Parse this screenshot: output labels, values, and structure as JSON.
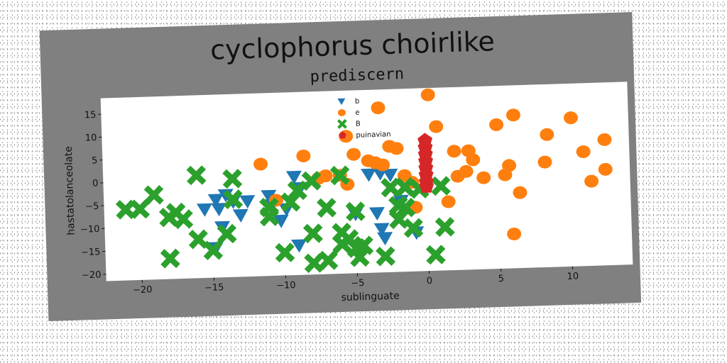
{
  "chart_data": {
    "type": "scatter",
    "title": "cyclophorus choirlike",
    "subtitle": "prediscern",
    "xlabel": "sublinguate",
    "ylabel": "hastatolanceolate",
    "xlim": [
      -22.5,
      14.2
    ],
    "ylim": [
      -21.5,
      18.5
    ],
    "xticks": [
      -20,
      -15,
      -10,
      -5,
      0,
      5,
      10
    ],
    "yticks": [
      -20,
      -15,
      -10,
      -5,
      0,
      5,
      10,
      15
    ],
    "xtick_labels": [
      "−20",
      "−15",
      "−10",
      "−5",
      "0",
      "5",
      "10"
    ],
    "ytick_labels": [
      "−20",
      "−15",
      "−10",
      "−5",
      "0",
      "5",
      "10",
      "15"
    ],
    "grid": false,
    "legend_position": "top-center",
    "colors": {
      "panel": "#808080",
      "plot_bg": "#ffffff",
      "b": "#1f77b4",
      "e": "#ff7f0e",
      "B": "#2ca02c",
      "puinavian": "#d62728"
    },
    "series": [
      {
        "name": "b",
        "marker": "triangle-down",
        "color": "#1f77b4",
        "points": [
          [
            -15.5,
            -6.5
          ],
          [
            -14.7,
            -4.5
          ],
          [
            -14.5,
            -6.5
          ],
          [
            -14.0,
            -3.5
          ],
          [
            -13.5,
            -5.0
          ],
          [
            -13.0,
            -8.0
          ],
          [
            -12.5,
            -5.0
          ],
          [
            -14.3,
            -10.5
          ],
          [
            -14.8,
            -15.0
          ],
          [
            -11.0,
            -4.0
          ],
          [
            -10.8,
            -6.0
          ],
          [
            -10.2,
            -9.5
          ],
          [
            -9.8,
            -7.0
          ],
          [
            -9.2,
            0.0
          ],
          [
            -8.8,
            -2.5
          ],
          [
            -9.0,
            -15.0
          ],
          [
            -5.0,
            -8.5
          ],
          [
            -4.0,
            0.0
          ],
          [
            -3.2,
            0.2
          ],
          [
            -2.5,
            -0.2
          ],
          [
            -3.5,
            -8.5
          ],
          [
            -3.2,
            -12.0
          ],
          [
            -3.0,
            -14.0
          ],
          [
            -1.8,
            -6.0
          ],
          [
            -0.8,
            -13.0
          ]
        ]
      },
      {
        "name": "e",
        "marker": "circle",
        "color": "#ff7f0e",
        "points": [
          [
            -11.5,
            3.0
          ],
          [
            -8.5,
            4.5
          ],
          [
            -7.5,
            -0.5
          ],
          [
            -7.0,
            0.0
          ],
          [
            -6.0,
            0.0
          ],
          [
            -5.5,
            -2.0
          ],
          [
            -5.0,
            4.5
          ],
          [
            -4.0,
            3.0
          ],
          [
            -3.5,
            2.5
          ],
          [
            -3.0,
            2.0
          ],
          [
            -2.5,
            6.0
          ],
          [
            -2.0,
            5.5
          ],
          [
            -1.5,
            -0.5
          ],
          [
            -1.0,
            -2.0
          ],
          [
            -0.8,
            -7.5
          ],
          [
            0.3,
            17.0
          ],
          [
            -5.5,
            8.5
          ],
          [
            -3.2,
            14.5
          ],
          [
            0.8,
            10.0
          ],
          [
            1.5,
            -6.5
          ],
          [
            2.0,
            4.5
          ],
          [
            2.2,
            -1.0
          ],
          [
            2.8,
            0.0
          ],
          [
            3.0,
            4.5
          ],
          [
            3.3,
            2.5
          ],
          [
            4.0,
            -1.5
          ],
          [
            5.0,
            10.0
          ],
          [
            5.5,
            -1.0
          ],
          [
            5.8,
            1.0
          ],
          [
            6.0,
            -14.0
          ],
          [
            6.2,
            12.0
          ],
          [
            6.5,
            -5.0
          ],
          [
            8.3,
            1.5
          ],
          [
            8.5,
            7.5
          ],
          [
            10.2,
            11.0
          ],
          [
            11.0,
            3.5
          ],
          [
            11.5,
            -3.0
          ],
          [
            12.5,
            6.0
          ],
          [
            12.5,
            -0.5
          ],
          [
            -10.5,
            -5.0
          ]
        ]
      },
      {
        "name": "B",
        "marker": "x",
        "color": "#2ca02c",
        "points": [
          [
            -21.0,
            -6.0
          ],
          [
            -20.0,
            -6.0
          ],
          [
            -19.0,
            -3.0
          ],
          [
            -18.0,
            -8.0
          ],
          [
            -17.5,
            -7.0
          ],
          [
            -17.0,
            -8.5
          ],
          [
            -18.0,
            -17.0
          ],
          [
            -16.0,
            1.0
          ],
          [
            -16.0,
            -13.0
          ],
          [
            -15.0,
            -15.5
          ],
          [
            -14.0,
            -12.0
          ],
          [
            -13.5,
            0.0
          ],
          [
            -13.5,
            -4.5
          ],
          [
            -11.0,
            -6.5
          ],
          [
            -11.0,
            -8.5
          ],
          [
            -10.0,
            -16.5
          ],
          [
            -9.5,
            -5.5
          ],
          [
            -9.0,
            -3.0
          ],
          [
            -8.0,
            -1.0
          ],
          [
            -8.0,
            -12.5
          ],
          [
            -8.0,
            -19.0
          ],
          [
            -7.0,
            -7.0
          ],
          [
            -7.0,
            -18.5
          ],
          [
            -6.0,
            0.0
          ],
          [
            -6.0,
            -12.5
          ],
          [
            -6.0,
            -15.0
          ],
          [
            -5.5,
            -14.0
          ],
          [
            -5.0,
            -8.0
          ],
          [
            -5.0,
            -16.0
          ],
          [
            -4.8,
            -18.0
          ],
          [
            -4.5,
            -15.5
          ],
          [
            -3.0,
            -18.0
          ],
          [
            -2.5,
            -3.0
          ],
          [
            -2.0,
            -10.0
          ],
          [
            -2.0,
            -7.0
          ],
          [
            -1.5,
            -3.0
          ],
          [
            -1.5,
            -7.5
          ],
          [
            -1.0,
            -12.0
          ],
          [
            -0.5,
            -3.5
          ],
          [
            0.5,
            -18.0
          ],
          [
            1.0,
            -3.0
          ],
          [
            1.2,
            -12.0
          ]
        ]
      },
      {
        "name": "puinavian",
        "marker": "pentagon",
        "color": "#d62728",
        "points": [
          [
            0.0,
            7.0
          ],
          [
            0.0,
            5.5
          ],
          [
            0.0,
            4.0
          ],
          [
            0.0,
            2.5
          ],
          [
            0.0,
            1.0
          ],
          [
            0.0,
            -0.5
          ],
          [
            0.0,
            -2.0
          ],
          [
            0.0,
            -3.0
          ]
        ]
      }
    ]
  }
}
